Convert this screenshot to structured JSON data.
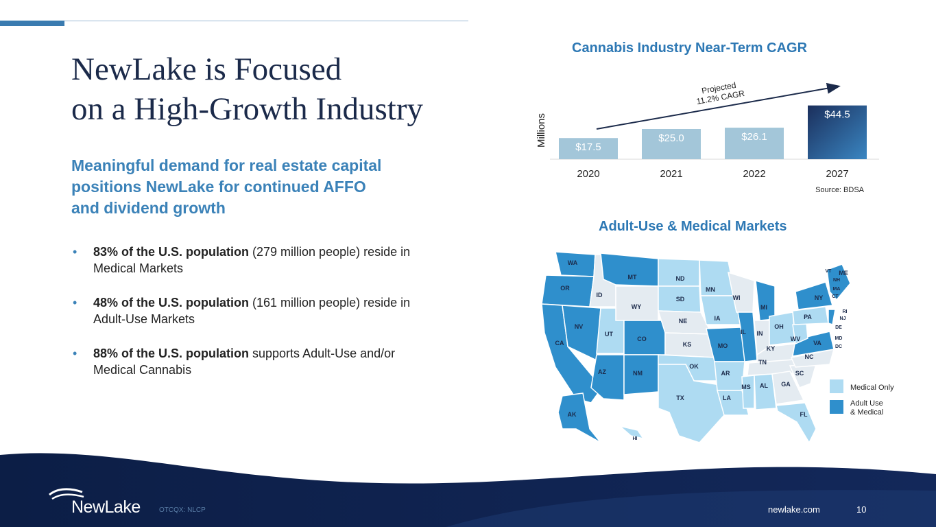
{
  "slide": {
    "title_line1": "NewLake is Focused",
    "title_line2": "on a High-Growth Industry",
    "subtitle_line1": "Meaningful demand for real estate capital",
    "subtitle_line2": "positions NewLake for continued AFFO",
    "subtitle_line3": "and dividend growth",
    "bullets": [
      {
        "bold": "83% of the U.S. population",
        "rest": " (279 million people) reside in Medical Markets"
      },
      {
        "bold": "48% of the U.S. population",
        "rest": " (161 million people) reside in Adult-Use Markets"
      },
      {
        "bold": "88% of the U.S. population",
        "rest": " supports Adult-Use and/or Medical Cannabis"
      }
    ]
  },
  "chart_data": {
    "type": "bar",
    "title": "Cannabis Industry Near-Term CAGR",
    "ylabel": "Millions",
    "categories": [
      "2020",
      "2021",
      "2022",
      "2027"
    ],
    "values": [
      17.5,
      25.0,
      26.1,
      44.5
    ],
    "value_labels": [
      "$17.5",
      "$25.0",
      "$26.1",
      "$44.5"
    ],
    "annotation_line1": "Projected",
    "annotation_line2": "11.2% CAGR",
    "source": "Source: BDSA",
    "grid": false
  },
  "map": {
    "title": "Adult-Use & Medical Markets",
    "legend": {
      "medical_only": "Medical Only",
      "adult_use_line1": "Adult Use",
      "adult_use_line2": "& Medical"
    },
    "colors": {
      "medical_only": "#aedbf2",
      "adult_use": "#2f8fcc",
      "none": "#e4ebf1"
    },
    "state_labels": [
      "WA",
      "OR",
      "CA",
      "NV",
      "ID",
      "MT",
      "WY",
      "UT",
      "AZ",
      "CO",
      "NM",
      "ND",
      "SD",
      "NE",
      "KS",
      "OK",
      "TX",
      "MN",
      "IA",
      "MO",
      "AR",
      "LA",
      "WI",
      "IL",
      "MI",
      "IN",
      "OH",
      "KY",
      "TN",
      "MS",
      "AL",
      "GA",
      "FL",
      "SC",
      "NC",
      "VA",
      "WV",
      "PA",
      "NY",
      "ME",
      "VT",
      "NH",
      "MA",
      "CT",
      "RI",
      "NJ",
      "DE",
      "MD",
      "DC",
      "AK",
      "HI"
    ]
  },
  "footer": {
    "logo": "NewLake",
    "ticker": "OTCQX: NLCP",
    "website": "newlake.com",
    "page": "10"
  }
}
